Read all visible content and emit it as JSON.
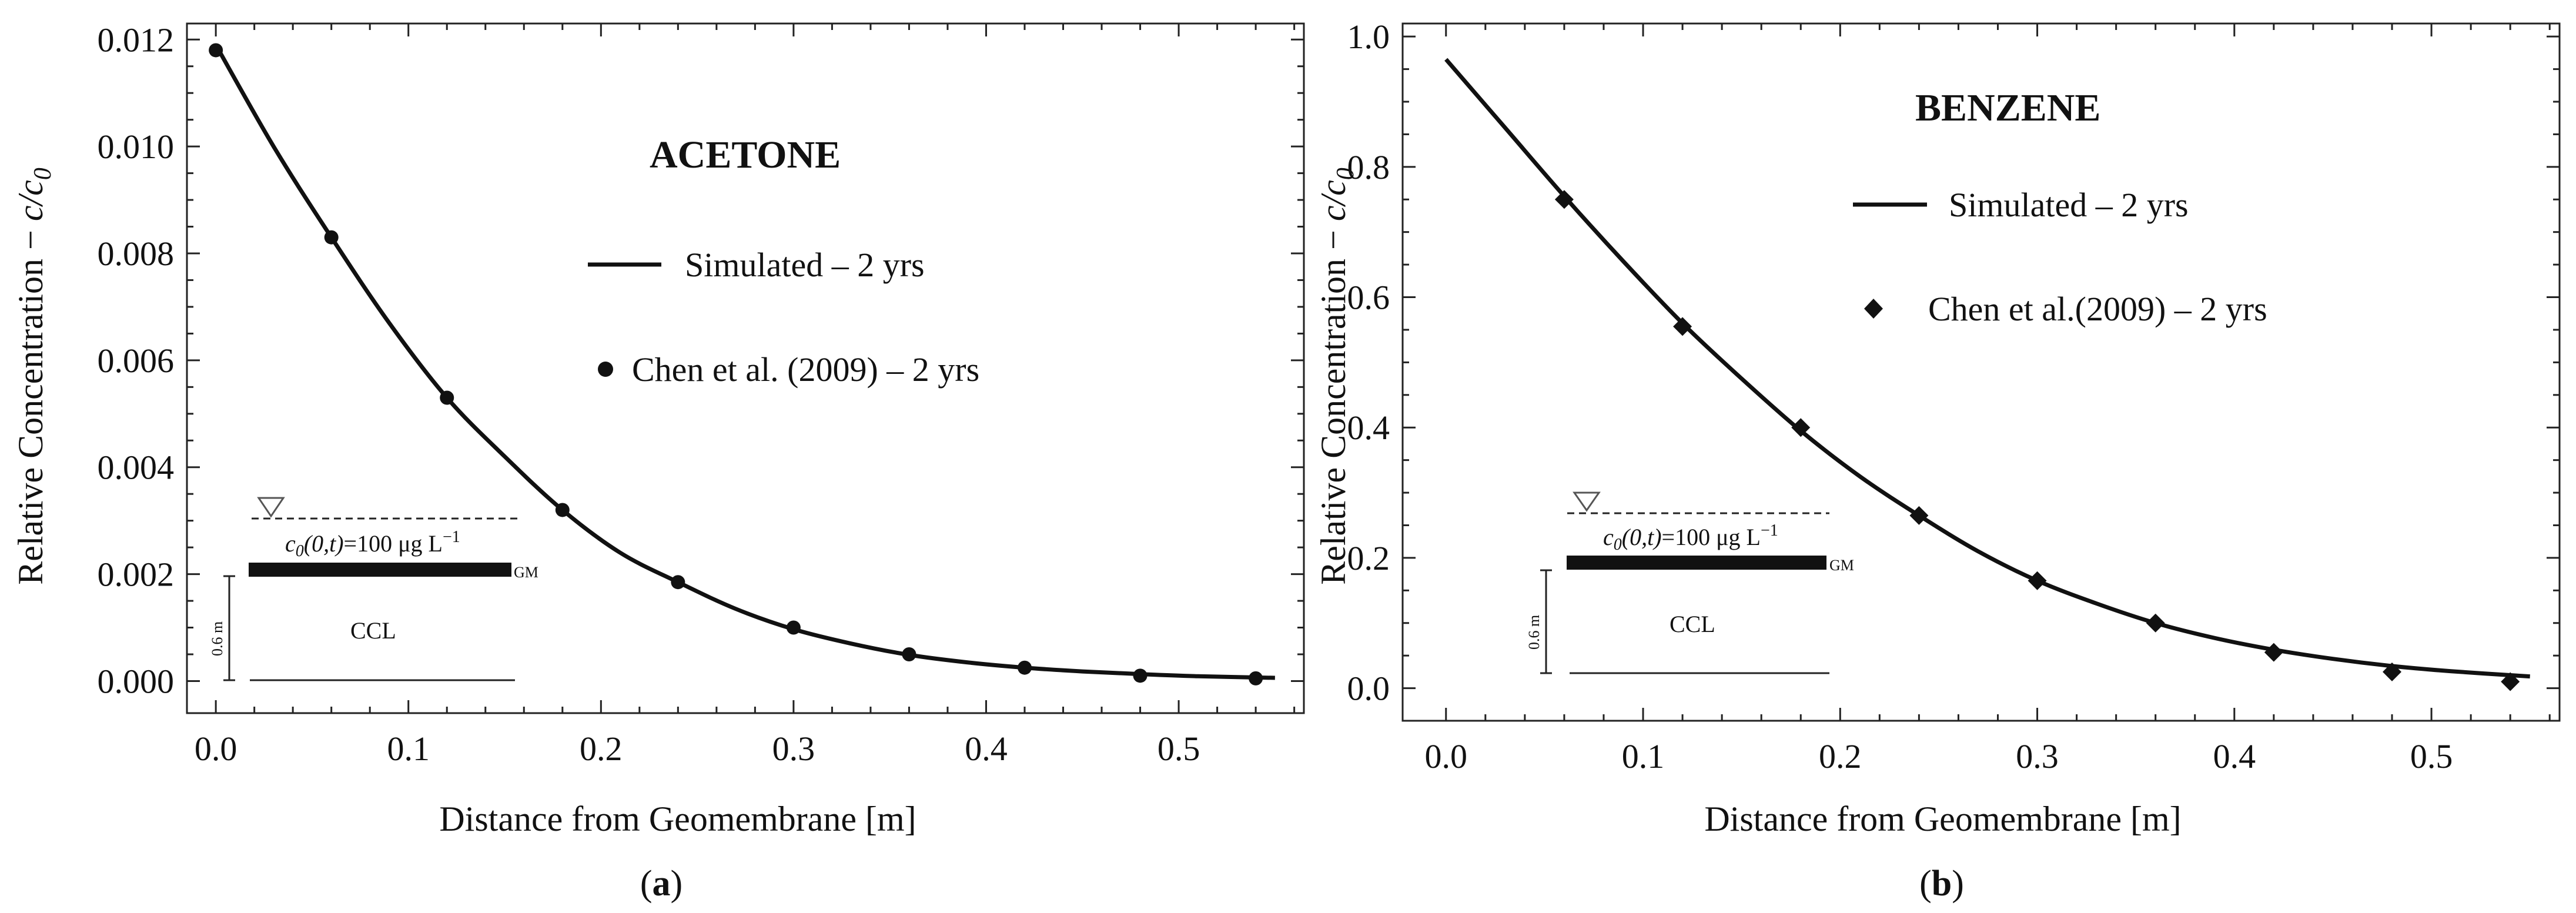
{
  "chart_data": [
    {
      "type": "line",
      "panel": "a",
      "caption": "(a)",
      "title": "ACETONE",
      "xlabel": "Distance from Geomembrane [m]",
      "ylabel_main": "Relative Concentration − ",
      "ylabel_c": "c/c",
      "ylabel_sub": "0",
      "xlim": [
        -0.015,
        0.565
      ],
      "ylim": [
        -0.0006,
        0.0123
      ],
      "xticks": [
        0.0,
        0.1,
        0.2,
        0.3,
        0.4,
        0.5
      ],
      "xtick_labels": [
        "0.0",
        "0.1",
        "0.2",
        "0.3",
        "0.4",
        "0.5"
      ],
      "yticks": [
        0.0,
        0.002,
        0.004,
        0.006,
        0.008,
        0.01,
        0.012
      ],
      "ytick_labels": [
        "0.000",
        "0.002",
        "0.004",
        "0.006",
        "0.008",
        "0.010",
        "0.012"
      ],
      "series": [
        {
          "name": "Simulated – 2 yrs",
          "kind": "line",
          "x": [
            0.0,
            0.03,
            0.06,
            0.09,
            0.12,
            0.15,
            0.18,
            0.21,
            0.24,
            0.27,
            0.3,
            0.33,
            0.36,
            0.39,
            0.42,
            0.45,
            0.48,
            0.51,
            0.55
          ],
          "values": [
            0.0119,
            0.01,
            0.0083,
            0.0067,
            0.0053,
            0.0042,
            0.0032,
            0.0024,
            0.00185,
            0.00135,
            0.00097,
            0.0007,
            0.00049,
            0.00035,
            0.00025,
            0.00018,
            0.00013,
            9e-05,
            6e-05
          ]
        },
        {
          "name": "Chen et al. (2009) – 2 yrs",
          "kind": "circle",
          "x": [
            0.0,
            0.06,
            0.12,
            0.18,
            0.24,
            0.3,
            0.36,
            0.42,
            0.48,
            0.54
          ],
          "values": [
            0.0118,
            0.0083,
            0.0053,
            0.0032,
            0.00185,
            0.001,
            0.0005,
            0.00025,
            0.0001,
            5e-05
          ]
        }
      ],
      "inset": {
        "c0_label": "c",
        "c0_sub": "0",
        "c0_args": "(0,t)",
        "c0_value": "=100 μg L",
        "c0_exp": "−1",
        "gm_label": "GM",
        "thickness_label": "0.6 m",
        "layer_label": "CCL"
      }
    },
    {
      "type": "line",
      "panel": "b",
      "caption": "(b)",
      "title": "BENZENE",
      "xlabel": "Distance from Geomembrane [m]",
      "ylabel_main": "Relative Concentration − ",
      "ylabel_c": "c/c",
      "ylabel_sub": "0",
      "xlim": [
        -0.022,
        0.565
      ],
      "ylim": [
        -0.05,
        1.02
      ],
      "xticks": [
        0.0,
        0.1,
        0.2,
        0.3,
        0.4,
        0.5
      ],
      "xtick_labels": [
        "0.0",
        "0.1",
        "0.2",
        "0.3",
        "0.4",
        "0.5"
      ],
      "yticks": [
        0.0,
        0.2,
        0.4,
        0.6,
        0.8,
        1.0
      ],
      "ytick_labels": [
        "0.0",
        "0.2",
        "0.4",
        "0.6",
        "0.8",
        "1.0"
      ],
      "series": [
        {
          "name": "Simulated – 2 yrs",
          "kind": "line",
          "x": [
            0.0,
            0.03,
            0.06,
            0.09,
            0.12,
            0.15,
            0.18,
            0.21,
            0.24,
            0.27,
            0.3,
            0.33,
            0.36,
            0.39,
            0.42,
            0.45,
            0.48,
            0.51,
            0.55
          ],
          "values": [
            0.965,
            0.86,
            0.755,
            0.655,
            0.56,
            0.475,
            0.395,
            0.325,
            0.265,
            0.21,
            0.165,
            0.13,
            0.1,
            0.077,
            0.059,
            0.045,
            0.034,
            0.026,
            0.018
          ]
        },
        {
          "name": "Chen et al.(2009) – 2 yrs",
          "kind": "diamond",
          "x": [
            0.06,
            0.12,
            0.18,
            0.24,
            0.3,
            0.36,
            0.42,
            0.48,
            0.54
          ],
          "values": [
            0.75,
            0.555,
            0.4,
            0.265,
            0.165,
            0.1,
            0.055,
            0.025,
            0.01
          ]
        }
      ],
      "inset": {
        "c0_label": "c",
        "c0_sub": "0",
        "c0_args": "(0,t)",
        "c0_value": "=100 μg L",
        "c0_exp": "−1",
        "gm_label": "GM",
        "thickness_label": "0.6 m",
        "layer_label": "CCL"
      }
    }
  ]
}
